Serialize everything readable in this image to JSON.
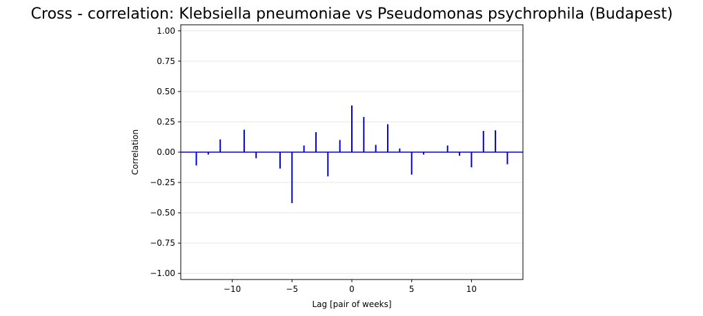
{
  "chart_data": {
    "type": "bar",
    "title": "Cross - correlation: Klebsiella pneumoniae vs Pseudomonas psychrophila (Budapest)",
    "xlabel": "Lag [pair of weeks]",
    "ylabel": "Correlation",
    "xlim": [
      -14.3,
      14.3
    ],
    "ylim": [
      -1.05,
      1.05
    ],
    "grid": "horizontal",
    "bar_color": "#0000cc",
    "baseline_color": "#0000cc",
    "xticks": [
      -10,
      -5,
      0,
      5,
      10
    ],
    "xtick_labels": [
      "−10",
      "−5",
      "0",
      "5",
      "10"
    ],
    "yticks": [
      -1.0,
      -0.75,
      -0.5,
      -0.25,
      0.0,
      0.25,
      0.5,
      0.75,
      1.0
    ],
    "ytick_labels": [
      "−1.00",
      "−0.75",
      "−0.50",
      "−0.25",
      "0.00",
      "0.25",
      "0.50",
      "0.75",
      "1.00"
    ],
    "lags": [
      -13,
      -12,
      -11,
      -10,
      -9,
      -8,
      -7,
      -6,
      -5,
      -4,
      -3,
      -2,
      -1,
      0,
      1,
      2,
      3,
      4,
      5,
      6,
      7,
      8,
      9,
      10,
      11,
      12,
      13
    ],
    "values": [
      -0.11,
      -0.02,
      0.105,
      0.0,
      0.185,
      -0.05,
      0.0,
      -0.135,
      -0.42,
      0.055,
      0.165,
      -0.2,
      0.1,
      0.385,
      0.29,
      0.06,
      0.23,
      0.03,
      -0.185,
      -0.02,
      0.0,
      0.055,
      -0.03,
      -0.125,
      0.175,
      0.18,
      -0.1
    ]
  }
}
